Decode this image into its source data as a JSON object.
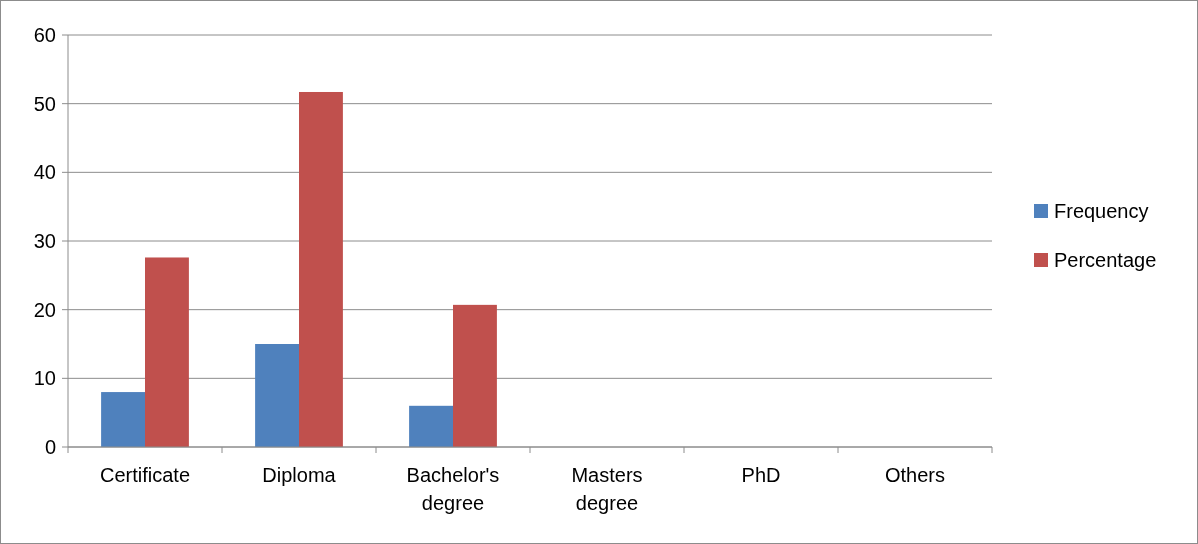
{
  "chart_data": {
    "type": "bar",
    "categories": [
      "Certificate",
      "Diploma",
      "Bachelor's degree",
      "Masters degree",
      "PhD",
      "Others"
    ],
    "series": [
      {
        "name": "Frequency",
        "color": "#4f81bd",
        "values": [
          8,
          15,
          6,
          0,
          0,
          0
        ]
      },
      {
        "name": "Percentage",
        "color": "#c0504d",
        "values": [
          27.6,
          51.7,
          20.7,
          0,
          0,
          0
        ]
      }
    ],
    "ylim": [
      0,
      60
    ],
    "yticks": [
      0,
      10,
      20,
      30,
      40,
      50,
      60
    ],
    "grid": "y",
    "legend": "right"
  }
}
